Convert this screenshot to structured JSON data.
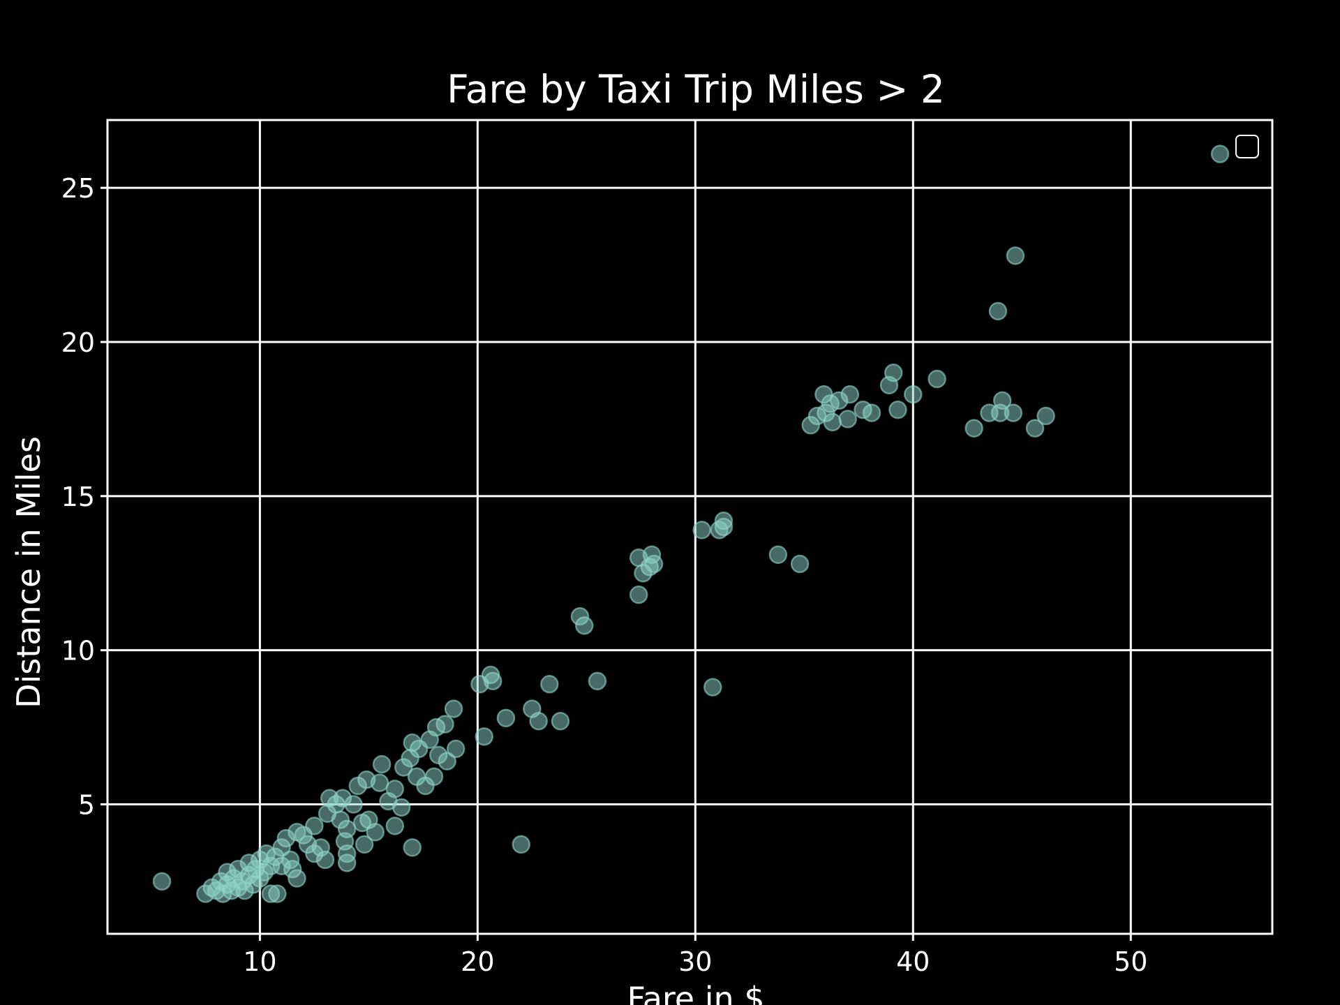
{
  "chart_data": {
    "type": "scatter",
    "title": "Fare by Taxi Trip Miles > 2",
    "xlabel": "Fare in $",
    "ylabel": "Distance in Miles",
    "xlim": [
      3,
      56.5
    ],
    "ylim": [
      0.8,
      27.2
    ],
    "xticks": [
      10,
      20,
      30,
      40,
      50
    ],
    "yticks": [
      5,
      10,
      15,
      20,
      25
    ],
    "grid": true,
    "legend": "top-right (empty)",
    "colors": {
      "background": "#000000",
      "foreground": "#ffffff",
      "points": "#8dd3c7"
    },
    "points": [
      {
        "x": 5.5,
        "y": 2.5
      },
      {
        "x": 7.5,
        "y": 2.1
      },
      {
        "x": 7.8,
        "y": 2.3
      },
      {
        "x": 8.0,
        "y": 2.2
      },
      {
        "x": 8.2,
        "y": 2.5
      },
      {
        "x": 8.3,
        "y": 2.1
      },
      {
        "x": 8.5,
        "y": 2.4
      },
      {
        "x": 8.5,
        "y": 2.8
      },
      {
        "x": 8.7,
        "y": 2.2
      },
      {
        "x": 8.8,
        "y": 2.6
      },
      {
        "x": 9.0,
        "y": 2.3
      },
      {
        "x": 9.0,
        "y": 2.9
      },
      {
        "x": 9.2,
        "y": 2.5
      },
      {
        "x": 9.3,
        "y": 2.2
      },
      {
        "x": 9.5,
        "y": 2.7
      },
      {
        "x": 9.5,
        "y": 3.1
      },
      {
        "x": 9.7,
        "y": 2.4
      },
      {
        "x": 9.8,
        "y": 2.9
      },
      {
        "x": 10.0,
        "y": 2.6
      },
      {
        "x": 10.0,
        "y": 3.2
      },
      {
        "x": 10.2,
        "y": 2.8
      },
      {
        "x": 10.3,
        "y": 3.4
      },
      {
        "x": 10.5,
        "y": 3.0
      },
      {
        "x": 10.5,
        "y": 2.1
      },
      {
        "x": 10.7,
        "y": 3.3
      },
      {
        "x": 10.8,
        "y": 2.1
      },
      {
        "x": 11.0,
        "y": 3.6
      },
      {
        "x": 11.0,
        "y": 3.0
      },
      {
        "x": 11.2,
        "y": 3.9
      },
      {
        "x": 11.4,
        "y": 3.2
      },
      {
        "x": 11.5,
        "y": 2.9
      },
      {
        "x": 11.7,
        "y": 2.6
      },
      {
        "x": 11.7,
        "y": 4.1
      },
      {
        "x": 12.0,
        "y": 4.0
      },
      {
        "x": 12.2,
        "y": 3.7
      },
      {
        "x": 12.5,
        "y": 4.3
      },
      {
        "x": 12.5,
        "y": 3.4
      },
      {
        "x": 12.8,
        "y": 3.6
      },
      {
        "x": 13.0,
        "y": 3.2
      },
      {
        "x": 13.1,
        "y": 4.7
      },
      {
        "x": 13.2,
        "y": 5.2
      },
      {
        "x": 13.5,
        "y": 5.0
      },
      {
        "x": 13.7,
        "y": 4.5
      },
      {
        "x": 13.8,
        "y": 5.2
      },
      {
        "x": 13.9,
        "y": 3.8
      },
      {
        "x": 14.0,
        "y": 4.2
      },
      {
        "x": 14.0,
        "y": 3.4
      },
      {
        "x": 14.0,
        "y": 3.1
      },
      {
        "x": 14.3,
        "y": 5.0
      },
      {
        "x": 14.5,
        "y": 5.6
      },
      {
        "x": 14.7,
        "y": 4.4
      },
      {
        "x": 14.8,
        "y": 3.7
      },
      {
        "x": 14.9,
        "y": 5.8
      },
      {
        "x": 15.0,
        "y": 4.5
      },
      {
        "x": 15.3,
        "y": 4.1
      },
      {
        "x": 15.5,
        "y": 5.7
      },
      {
        "x": 15.6,
        "y": 6.3
      },
      {
        "x": 15.9,
        "y": 5.1
      },
      {
        "x": 16.2,
        "y": 5.5
      },
      {
        "x": 16.2,
        "y": 4.3
      },
      {
        "x": 16.5,
        "y": 4.9
      },
      {
        "x": 16.6,
        "y": 6.2
      },
      {
        "x": 16.9,
        "y": 6.5
      },
      {
        "x": 17.0,
        "y": 7.0
      },
      {
        "x": 17.0,
        "y": 3.6
      },
      {
        "x": 17.2,
        "y": 5.9
      },
      {
        "x": 17.3,
        "y": 6.8
      },
      {
        "x": 17.6,
        "y": 5.6
      },
      {
        "x": 17.8,
        "y": 7.1
      },
      {
        "x": 18.0,
        "y": 5.9
      },
      {
        "x": 18.1,
        "y": 7.5
      },
      {
        "x": 18.2,
        "y": 6.6
      },
      {
        "x": 18.5,
        "y": 7.6
      },
      {
        "x": 18.6,
        "y": 6.4
      },
      {
        "x": 18.9,
        "y": 8.1
      },
      {
        "x": 19.0,
        "y": 6.8
      },
      {
        "x": 20.1,
        "y": 8.9
      },
      {
        "x": 20.3,
        "y": 7.2
      },
      {
        "x": 20.6,
        "y": 9.2
      },
      {
        "x": 20.7,
        "y": 9.0
      },
      {
        "x": 21.3,
        "y": 7.8
      },
      {
        "x": 22.0,
        "y": 3.7
      },
      {
        "x": 22.5,
        "y": 8.1
      },
      {
        "x": 22.8,
        "y": 7.7
      },
      {
        "x": 23.3,
        "y": 8.9
      },
      {
        "x": 23.8,
        "y": 7.7
      },
      {
        "x": 24.7,
        "y": 11.1
      },
      {
        "x": 24.9,
        "y": 10.8
      },
      {
        "x": 25.5,
        "y": 9.0
      },
      {
        "x": 27.4,
        "y": 11.8
      },
      {
        "x": 27.4,
        "y": 13.0
      },
      {
        "x": 27.6,
        "y": 12.5
      },
      {
        "x": 27.9,
        "y": 12.7
      },
      {
        "x": 28.0,
        "y": 13.1
      },
      {
        "x": 28.1,
        "y": 12.8
      },
      {
        "x": 30.3,
        "y": 13.9
      },
      {
        "x": 30.8,
        "y": 8.8
      },
      {
        "x": 31.1,
        "y": 13.9
      },
      {
        "x": 31.3,
        "y": 14.0
      },
      {
        "x": 31.3,
        "y": 14.2
      },
      {
        "x": 33.8,
        "y": 13.1
      },
      {
        "x": 34.8,
        "y": 12.8
      },
      {
        "x": 35.3,
        "y": 17.3
      },
      {
        "x": 35.6,
        "y": 17.6
      },
      {
        "x": 35.9,
        "y": 18.3
      },
      {
        "x": 36.0,
        "y": 17.7
      },
      {
        "x": 36.2,
        "y": 18.0
      },
      {
        "x": 36.3,
        "y": 17.4
      },
      {
        "x": 36.6,
        "y": 18.1
      },
      {
        "x": 37.0,
        "y": 17.5
      },
      {
        "x": 37.1,
        "y": 18.3
      },
      {
        "x": 37.7,
        "y": 17.8
      },
      {
        "x": 38.1,
        "y": 17.7
      },
      {
        "x": 38.9,
        "y": 18.6
      },
      {
        "x": 39.1,
        "y": 19.0
      },
      {
        "x": 39.3,
        "y": 17.8
      },
      {
        "x": 40.0,
        "y": 18.3
      },
      {
        "x": 41.1,
        "y": 18.8
      },
      {
        "x": 42.8,
        "y": 17.2
      },
      {
        "x": 43.5,
        "y": 17.7
      },
      {
        "x": 43.9,
        "y": 21.0
      },
      {
        "x": 44.0,
        "y": 17.7
      },
      {
        "x": 44.1,
        "y": 18.1
      },
      {
        "x": 44.6,
        "y": 17.7
      },
      {
        "x": 44.7,
        "y": 22.8
      },
      {
        "x": 45.6,
        "y": 17.2
      },
      {
        "x": 46.1,
        "y": 17.6
      },
      {
        "x": 54.1,
        "y": 26.1
      }
    ]
  }
}
